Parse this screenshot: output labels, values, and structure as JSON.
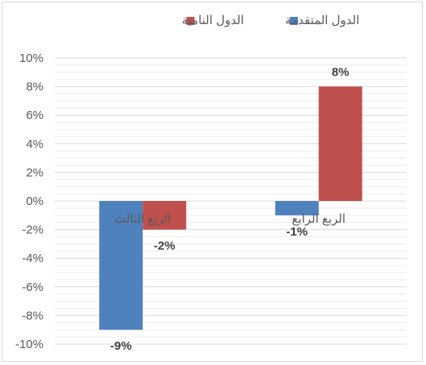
{
  "chart_data": {
    "type": "bar",
    "categories": [
      "الربع الثالث",
      "الربع الرابع"
    ],
    "series": [
      {
        "name": "الدول المتقدمة",
        "color": "#4f81bd",
        "values": [
          -9,
          -1
        ]
      },
      {
        "name": "الدول النامية",
        "color": "#c0504d",
        "values": [
          -2,
          8
        ]
      }
    ],
    "value_labels": [
      [
        "-9%",
        "-1%"
      ],
      [
        "-2%",
        "8%"
      ]
    ],
    "ylim": [
      -10,
      10
    ],
    "yticks": [
      "10%",
      "8%",
      "6%",
      "4%",
      "2%",
      "0%",
      "-2%",
      "-4%",
      "-6%",
      "-8%",
      "-10%"
    ],
    "grid": true,
    "legend_position": "top"
  }
}
